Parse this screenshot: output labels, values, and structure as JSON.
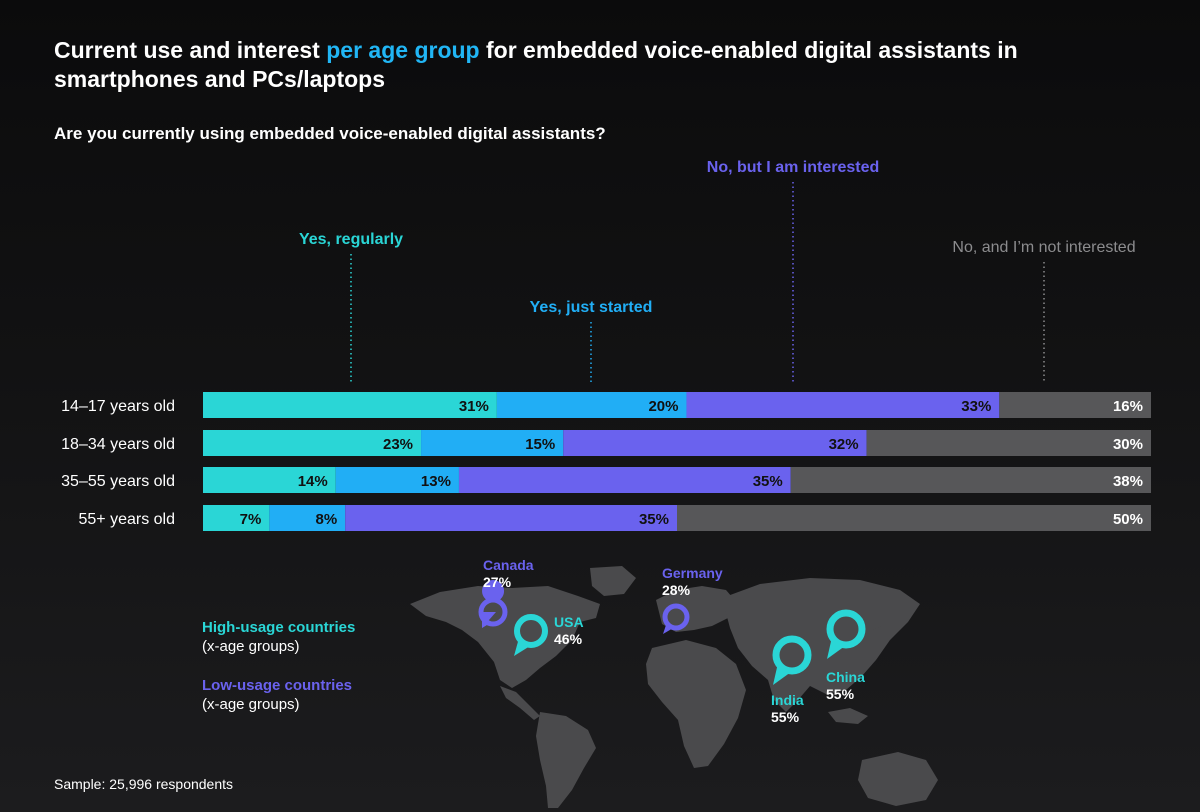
{
  "title": {
    "part1": "Current use and interest ",
    "highlight": "per age group",
    "part2": " for embedded voice-enabled digital assistants in smartphones and PCs/laptops"
  },
  "subtitle": "Are you currently using embedded voice-enabled digital assistants?",
  "chart_data": {
    "type": "bar",
    "orientation": "horizontal",
    "stacked": true,
    "categories": [
      "14–17 years old",
      "18–34 years old",
      "35–55 years old",
      "55+ years old"
    ],
    "series": [
      {
        "name": "Yes, regularly",
        "color": "#2ad6d6",
        "values": [
          31,
          23,
          14,
          7
        ]
      },
      {
        "name": "Yes, just started",
        "color": "#21aef5",
        "values": [
          20,
          15,
          13,
          8
        ]
      },
      {
        "name": "No, but I am interested",
        "color": "#6a62ee",
        "values": [
          33,
          32,
          35,
          35
        ]
      },
      {
        "name": "No, and I’m not interested",
        "color": "#575759",
        "values": [
          16,
          30,
          38,
          50
        ]
      }
    ],
    "value_suffix": "%",
    "label_colors": [
      "#2ad6d6",
      "#21aef5",
      "#6a62ee",
      "#8c8c8e"
    ]
  },
  "legend": {
    "high": {
      "name": "High-usage countries",
      "sub": "(x-age groups)",
      "color": "#2ad6d6"
    },
    "low": {
      "name": "Low-usage countries",
      "sub": "(x-age groups)",
      "color": "#6a62ee"
    }
  },
  "countries": [
    {
      "name": "Canada",
      "value": "27%",
      "group": "low"
    },
    {
      "name": "USA",
      "value": "46%",
      "group": "high"
    },
    {
      "name": "Germany",
      "value": "28%",
      "group": "low"
    },
    {
      "name": "India",
      "value": "55%",
      "group": "high"
    },
    {
      "name": "China",
      "value": "55%",
      "group": "high"
    }
  ],
  "sample": "Sample: 25,996 respondents"
}
